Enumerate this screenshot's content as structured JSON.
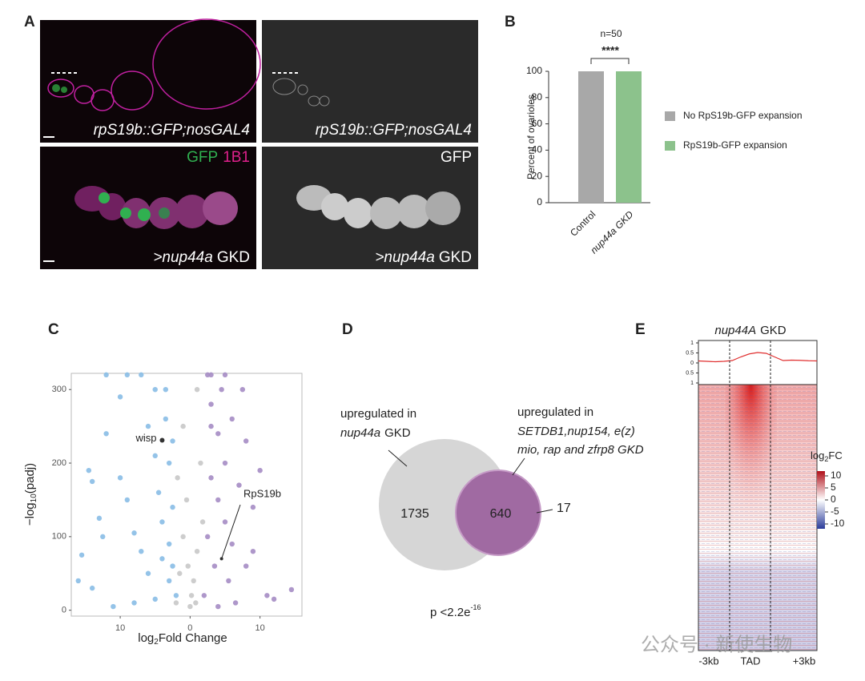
{
  "figure": {
    "panel_labels": [
      "A",
      "B",
      "C",
      "D",
      "E"
    ],
    "panel_a": {
      "images": [
        {
          "caption": "rpS19b::GFP;nosGAL4"
        },
        {
          "caption": "rpS19b::GFP;nosGAL4"
        },
        {
          "channels": [
            "GFP",
            "1B1"
          ],
          "caption": ">nup44a",
          "caption_suffix": "GKD"
        },
        {
          "channels": [
            "GFP"
          ],
          "caption": ">nup44a",
          "caption_suffix": "GKD"
        }
      ]
    },
    "venn": {
      "left_label": [
        "upregulated in",
        "nup44a",
        "GKD"
      ],
      "right_label": [
        "upregulated in",
        "SETDB1,nup154, e(z)",
        "mio, rap and zfrp8 GKD"
      ],
      "left_only": 1735,
      "overlap": 640,
      "right_only": 17,
      "p_value": [
        "p <2.2e",
        "-16"
      ]
    },
    "watermark": "公众号 · 新使生物"
  },
  "chart_data": [
    {
      "type": "stacked_bar",
      "ylabel": "Percent of ovarioles",
      "annotation": "n=50",
      "significance": "****",
      "categories": [
        "Control",
        "nup44a GKD"
      ],
      "series": [
        {
          "name": "No RpS19b-GFP expansion",
          "color": "#a8a8a8",
          "values": [
            100,
            0
          ]
        },
        {
          "name": "RpS19b-GFP expansion",
          "color": "#8cc28c",
          "values": [
            0,
            100
          ]
        }
      ],
      "ylim": [
        0,
        100
      ],
      "yticks": [
        0,
        20,
        40,
        60,
        80,
        100
      ],
      "legend": "right"
    },
    {
      "type": "scatter",
      "xlabel": [
        "log",
        "2",
        "Fold Change"
      ],
      "ylabel": [
        "−log",
        "10",
        "(padj)"
      ],
      "xlim": [
        -17,
        16
      ],
      "ylim": [
        -8,
        322
      ],
      "xticks": [
        {
          "value": -10,
          "label": "10"
        },
        0,
        {
          "value": 10,
          "label": "10"
        }
      ],
      "yticks": [
        0,
        100,
        200,
        300
      ],
      "series": [
        {
          "color": "#88bde6",
          "x": [
            -15.5,
            -14.5,
            -14,
            -13,
            -12.5,
            -12,
            -10,
            -10,
            -9,
            -8,
            -7,
            -6,
            -5,
            -5,
            -4.5,
            -4,
            -3.5,
            -3,
            -3,
            -3,
            -2.5,
            -2.5,
            -2,
            -5,
            -8,
            -11,
            -14,
            -16,
            -6,
            -4,
            -3.5,
            -2.5,
            -7,
            -12,
            -9
          ],
          "values": [
            75,
            190,
            175,
            125,
            100,
            240,
            290,
            180,
            150,
            105,
            80,
            250,
            300,
            210,
            160,
            120,
            260,
            200,
            90,
            40,
            140,
            60,
            20,
            15,
            10,
            5,
            30,
            40,
            50,
            70,
            300,
            230,
            320,
            320,
            320
          ]
        },
        {
          "color": "#c8c8c8",
          "x": [
            -2,
            -1.5,
            -1,
            -0.5,
            0,
            0.5,
            1,
            1.5,
            -1,
            1,
            -1.8,
            0.2,
            1.8,
            -0.3,
            0.8
          ],
          "values": [
            10,
            50,
            100,
            150,
            5,
            40,
            80,
            200,
            250,
            300,
            180,
            20,
            120,
            60,
            10
          ]
        },
        {
          "color": "#a58cc4",
          "x": [
            2,
            2.5,
            3,
            3,
            3.5,
            4,
            4,
            4.5,
            5,
            5,
            5.5,
            6,
            6,
            7,
            7.5,
            8,
            8,
            9,
            10,
            11,
            12,
            14.5,
            3,
            5,
            2.5,
            9,
            6.5,
            4,
            3
          ],
          "values": [
            20,
            100,
            180,
            280,
            60,
            150,
            240,
            300,
            120,
            200,
            40,
            260,
            90,
            170,
            300,
            230,
            60,
            140,
            190,
            20,
            15,
            28,
            320,
            320,
            320,
            80,
            10,
            5,
            250
          ]
        }
      ],
      "annotations": [
        {
          "text": "wisp",
          "x": -4,
          "y": 231
        },
        {
          "text": "RpS19b",
          "x": 4.5,
          "y": 70
        }
      ]
    },
    {
      "type": "heatmap",
      "title": [
        "nup44A",
        "GKD"
      ],
      "x_labels": [
        "-3kb",
        "TAD",
        "+3kb"
      ],
      "profile": {
        "color": "#e03030",
        "values": [
          0.1,
          0.08,
          0.06,
          0.08,
          0.12,
          0.3,
          0.45,
          0.52,
          0.48,
          0.3,
          0.12,
          0.14,
          0.13,
          0.11,
          0.1
        ],
        "ylim": [
          -1,
          1
        ],
        "yticks": [
          {
            "value": -1,
            "label": "1"
          },
          {
            "value": -0.5,
            "label": "0.5"
          },
          0,
          0.5,
          1
        ]
      },
      "colorbar": {
        "title": [
          "log",
          "2",
          "FC"
        ],
        "lim": [
          -12,
          12
        ],
        "ticks": [
          -10,
          -5,
          0,
          5,
          10
        ]
      }
    }
  ]
}
